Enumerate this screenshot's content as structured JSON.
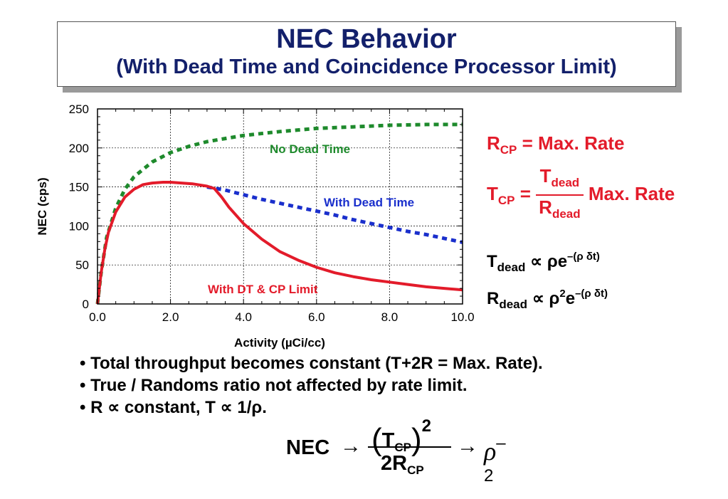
{
  "title": {
    "main": "NEC Behavior",
    "sub": "(With Dead Time and Coincidence Processor Limit)"
  },
  "colors": {
    "title": "#13206b",
    "no_dead_time": "#1e8a2c",
    "with_dead_time": "#1a2fcc",
    "with_dt_cp": "#e31b2a",
    "equations": "#e31b2a"
  },
  "chart_data": {
    "type": "line",
    "xlabel": "Activity (µCi/cc)",
    "ylabel": "NEC (cps)",
    "xlim": [
      0,
      10
    ],
    "ylim": [
      0,
      250
    ],
    "x_ticks": [
      "0.0",
      "2.0",
      "4.0",
      "6.0",
      "8.0",
      "10.0"
    ],
    "y_ticks": [
      "0",
      "50",
      "100",
      "150",
      "200",
      "250"
    ],
    "grid": true,
    "series": [
      {
        "name": "No Dead Time",
        "style": "dashed",
        "color": "#1e8a2c",
        "x": [
          0.0,
          0.1,
          0.25,
          0.5,
          0.75,
          1.0,
          1.5,
          2.0,
          2.5,
          3.0,
          3.5,
          4.0,
          5.0,
          6.0,
          7.0,
          8.0,
          9.0,
          10.0
        ],
        "y": [
          0,
          40,
          85,
          123,
          147,
          163,
          182,
          194,
          202,
          208,
          212,
          216,
          221,
          225,
          227,
          229,
          230,
          230
        ]
      },
      {
        "name": "With Dead Time",
        "style": "dashed",
        "color": "#1a2fcc",
        "x": [
          3.0,
          3.5,
          4.0,
          4.5,
          5.0,
          5.5,
          6.0,
          6.5,
          7.0,
          7.5,
          8.0,
          8.5,
          9.0,
          9.5,
          10.0
        ],
        "y": [
          150,
          146,
          140,
          134,
          129,
          124,
          119,
          114,
          108,
          103,
          98,
          93,
          89,
          84,
          79
        ]
      },
      {
        "name": "With DT & CP Limit",
        "style": "solid",
        "color": "#e31b2a",
        "x": [
          0.0,
          0.05,
          0.1,
          0.2,
          0.3,
          0.5,
          0.75,
          1.0,
          1.25,
          1.5,
          1.8,
          2.0,
          2.3,
          2.6,
          3.0,
          3.2,
          3.4,
          3.6,
          4.0,
          4.5,
          5.0,
          5.5,
          6.0,
          6.5,
          7.0,
          7.5,
          8.0,
          8.5,
          9.0,
          9.5,
          10.0
        ],
        "y": [
          0,
          20,
          40,
          70,
          92,
          118,
          137,
          147,
          153,
          155,
          156,
          156,
          155,
          154,
          151,
          148,
          137,
          124,
          103,
          83,
          67,
          56,
          47,
          40,
          35,
          31,
          28,
          25,
          22,
          20,
          18
        ]
      }
    ],
    "annotations": [
      "No Dead Time",
      "With Dead Time",
      "With DT & CP Limit"
    ]
  },
  "equations": {
    "rcp_left": "R",
    "rcp_sub": "CP",
    "rcp_right": " = Max. Rate",
    "tcp_left": "T",
    "tcp_sub": "CP",
    "tcp_eq": " =",
    "tcp_num": "T",
    "tcp_num_sub": "dead",
    "tcp_den": "R",
    "tcp_den_sub": "dead",
    "tcp_right": " Max. Rate",
    "tdead_left": "T",
    "tdead_sub": "dead",
    "tdead_rel": " ∝ ρe",
    "tdead_exp": "–(ρ δt)",
    "rdead_left": "R",
    "rdead_sub": "dead",
    "rdead_rel": " ∝ ρ",
    "rdead_pow": "2",
    "rdead_e": "e",
    "rdead_exp": "–(ρ δt)"
  },
  "bullets": [
    "• Total throughput becomes constant (T+2R = Max. Rate).",
    "• True / Randoms ratio not affected by rate limit.",
    "• R ∝ constant, T ∝ 1/ρ."
  ],
  "nec_formula": {
    "lhs": "NEC",
    "arrow": "→",
    "num_open": "(",
    "num_t": "T",
    "num_sub": "CP",
    "num_close": ")",
    "num_pow": "2",
    "den_main": "2R",
    "den_sub": "CP",
    "rho": "ρ",
    "rho_pow": "–2"
  }
}
